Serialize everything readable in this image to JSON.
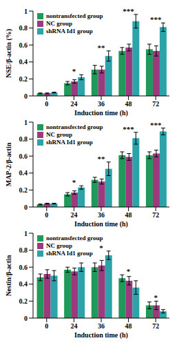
{
  "chart_data": [
    {
      "type": "bar",
      "y_label": "NSE/β-actin (%)",
      "x_label": "Induction time (h)",
      "categories": [
        "0",
        "24",
        "36",
        "48",
        "72"
      ],
      "series": [
        {
          "name": "nontransfected group",
          "color": "#1f9a5a",
          "values": [
            0.03,
            0.15,
            0.31,
            0.53,
            0.55
          ],
          "errors": [
            0.005,
            0.02,
            0.05,
            0.04,
            0.06
          ]
        },
        {
          "name": "NC group",
          "color": "#9b3b7e",
          "values": [
            0.03,
            0.17,
            0.31,
            0.57,
            0.53
          ],
          "errors": [
            0.005,
            0.02,
            0.04,
            0.04,
            0.06
          ]
        },
        {
          "name": "shRNA Id1 group",
          "color": "#2ba3a8",
          "values": [
            0.04,
            0.22,
            0.47,
            0.88,
            0.81
          ],
          "errors": [
            0.005,
            0.03,
            0.06,
            0.08,
            0.05
          ]
        }
      ],
      "ylim": [
        0,
        1
      ],
      "yticks": [
        0,
        0.2,
        0.4,
        0.6,
        0.8,
        1
      ],
      "legend": "upper left",
      "annotations": [
        {
          "category": "24",
          "text": "*"
        },
        {
          "category": "36",
          "text": "**"
        },
        {
          "category": "48",
          "text": "***"
        },
        {
          "category": "72",
          "text": "***"
        }
      ]
    },
    {
      "type": "bar",
      "y_label": "MAP-2/β-actin",
      "x_label": "Induction time (h)",
      "categories": [
        "0",
        "24",
        "36",
        "48",
        "72"
      ],
      "series": [
        {
          "name": "nontransfected group",
          "color": "#1f9a5a",
          "values": [
            0.03,
            0.15,
            0.32,
            0.61,
            0.61
          ],
          "errors": [
            0.005,
            0.02,
            0.03,
            0.04,
            0.04
          ]
        },
        {
          "name": "NC group",
          "color": "#9b3b7e",
          "values": [
            0.04,
            0.17,
            0.3,
            0.59,
            0.63
          ],
          "errors": [
            0.005,
            0.02,
            0.03,
            0.04,
            0.04
          ]
        },
        {
          "name": "shRNA Id1 group",
          "color": "#2ba3a8",
          "values": [
            0.04,
            0.23,
            0.45,
            0.81,
            0.89
          ],
          "errors": [
            0.005,
            0.02,
            0.08,
            0.07,
            0.04
          ]
        }
      ],
      "ylim": [
        0,
        1
      ],
      "yticks": [
        0,
        0.2,
        0.4,
        0.6,
        0.8,
        1
      ],
      "legend": "upper left",
      "annotations": [
        {
          "category": "24",
          "text": "*"
        },
        {
          "category": "36",
          "text": "**"
        },
        {
          "category": "48",
          "text": "***"
        },
        {
          "category": "72",
          "text": "***"
        }
      ]
    },
    {
      "type": "bar",
      "y_label": "Nestin/β-actin",
      "x_label": "Induction time (h)",
      "categories": [
        "0",
        "24",
        "36",
        "48",
        "72"
      ],
      "series": [
        {
          "name": "nontransfected group",
          "color": "#1f9a5a",
          "values": [
            0.48,
            0.57,
            0.6,
            0.47,
            0.15
          ],
          "errors": [
            0.04,
            0.03,
            0.05,
            0.04,
            0.04
          ]
        },
        {
          "name": "NC group",
          "color": "#9b3b7e",
          "values": [
            0.52,
            0.55,
            0.62,
            0.44,
            0.15
          ],
          "errors": [
            0.05,
            0.04,
            0.06,
            0.05,
            0.05
          ]
        },
        {
          "name": "shRNA Id1 group",
          "color": "#2ba3a8",
          "values": [
            0.5,
            0.6,
            0.74,
            0.36,
            0.08
          ],
          "errors": [
            0.06,
            0.05,
            0.05,
            0.08,
            0.02
          ]
        }
      ],
      "ylim": [
        0,
        1
      ],
      "yticks": [
        0,
        0.2,
        0.4,
        0.6,
        0.8,
        1
      ],
      "legend": "upper left",
      "annotations": [
        {
          "category": "36",
          "text": "*"
        },
        {
          "category": "48",
          "text": "*"
        },
        {
          "category": "72",
          "text": "*"
        }
      ]
    }
  ]
}
